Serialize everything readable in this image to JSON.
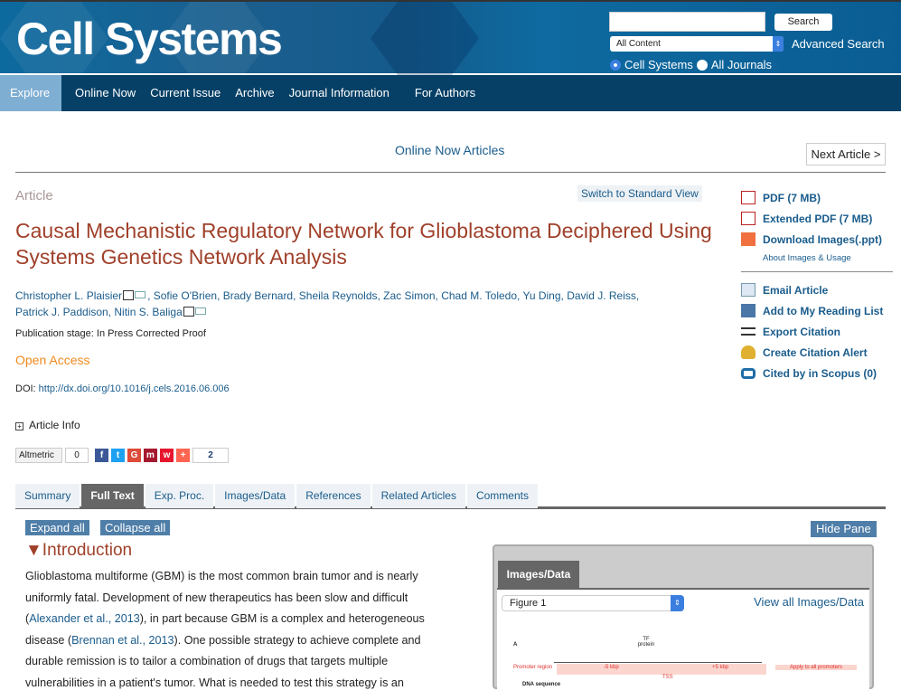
{
  "header": {
    "logo": "Cell Systems",
    "search_value": "",
    "search_button": "Search",
    "scope_select": "All Content",
    "advanced_search": "Advanced Search",
    "radio_options": [
      {
        "label": "Cell Systems",
        "checked": true
      },
      {
        "label": "All Journals",
        "checked": false
      }
    ]
  },
  "nav": {
    "items": [
      "Explore",
      "Online Now",
      "Current Issue",
      "Archive",
      "Journal Information",
      "For Authors"
    ],
    "active": "Explore"
  },
  "breadcrumb": {
    "online_now": "Online Now Articles",
    "next_article": "Next Article >"
  },
  "article": {
    "type": "Article",
    "switch_view": "Switch to Standard View",
    "title": "Causal Mechanistic Regulatory Network for Glioblastoma Deciphered Using Systems Genetics Network Analysis",
    "authors": [
      "Christopher L. Plaisier",
      "Sofie O'Brien",
      "Brady Bernard",
      "Sheila Reynolds",
      "Zac Simon",
      "Chad M. Toledo",
      "Yu Ding",
      "David J. Reiss",
      "Patrick J. Paddison",
      "Nitin S. Baliga"
    ],
    "stage": "Publication stage: In Press Corrected Proof",
    "open_access": "Open Access",
    "doi_label": "DOI: ",
    "doi": "http://dx.doi.org/10.1016/j.cels.2016.06.006",
    "article_info": "Article Info"
  },
  "share": {
    "altmetric": "Altmetric",
    "altmetric_count": "0",
    "icons": [
      "facebook-icon",
      "twitter-icon",
      "google-plus-icon",
      "mendeley-icon",
      "weibo-icon",
      "addthis-icon"
    ],
    "share_count": "2"
  },
  "tabs": {
    "items": [
      "Summary",
      "Full Text",
      "Exp. Proc.",
      "Images/Data",
      "References",
      "Related Articles",
      "Comments"
    ],
    "active": "Full Text"
  },
  "content": {
    "expand_all": "Expand all",
    "collapse_all": "Collapse all",
    "hide_pane": "Hide Pane",
    "section_title": "▼Introduction",
    "p1": "Glioblastoma multiforme (GBM) is the most common brain tumor and is nearly uniformly fatal. Development of new therapeutics has been slow and difficult (",
    "ref1": "Alexander et al., 2013",
    "p2": "), in part because GBM is a complex and heterogeneous disease (",
    "ref2": "Brennan et al., 2013",
    "p3": "). One possible strategy to achieve complete and durable remission is to tailor a combination of drugs that targets multiple vulnerabilities in a patient's tumor. What is needed to test this strategy is an"
  },
  "sidebar": {
    "pdf": "PDF (7 MB)",
    "extended_pdf": "Extended PDF (7 MB)",
    "download_images": "Download Images(.ppt)",
    "about_images": "About Images & Usage",
    "email": "Email Article",
    "reading_list": "Add to My Reading List",
    "export": "Export Citation",
    "alert": "Create Citation Alert",
    "scopus": "Cited by in Scopus (0)"
  },
  "pane": {
    "tab": "Images/Data",
    "figure_select": "Figure 1",
    "view_all": "View all Images/Data",
    "figure_labels": {
      "panel": "A",
      "tf": "TF protein",
      "promoter": "Promoter region",
      "minus": "-5 kbp",
      "plus": "+5 kbp",
      "tss": "TSS",
      "apply": "Apply to all promoters",
      "dna": "DNA sequence"
    }
  },
  "colors": {
    "nav_bg": "#064066",
    "title": "#a0402a",
    "link": "#1a5c8c",
    "open_access": "#f08a1d",
    "button": "#4f7ea8"
  }
}
